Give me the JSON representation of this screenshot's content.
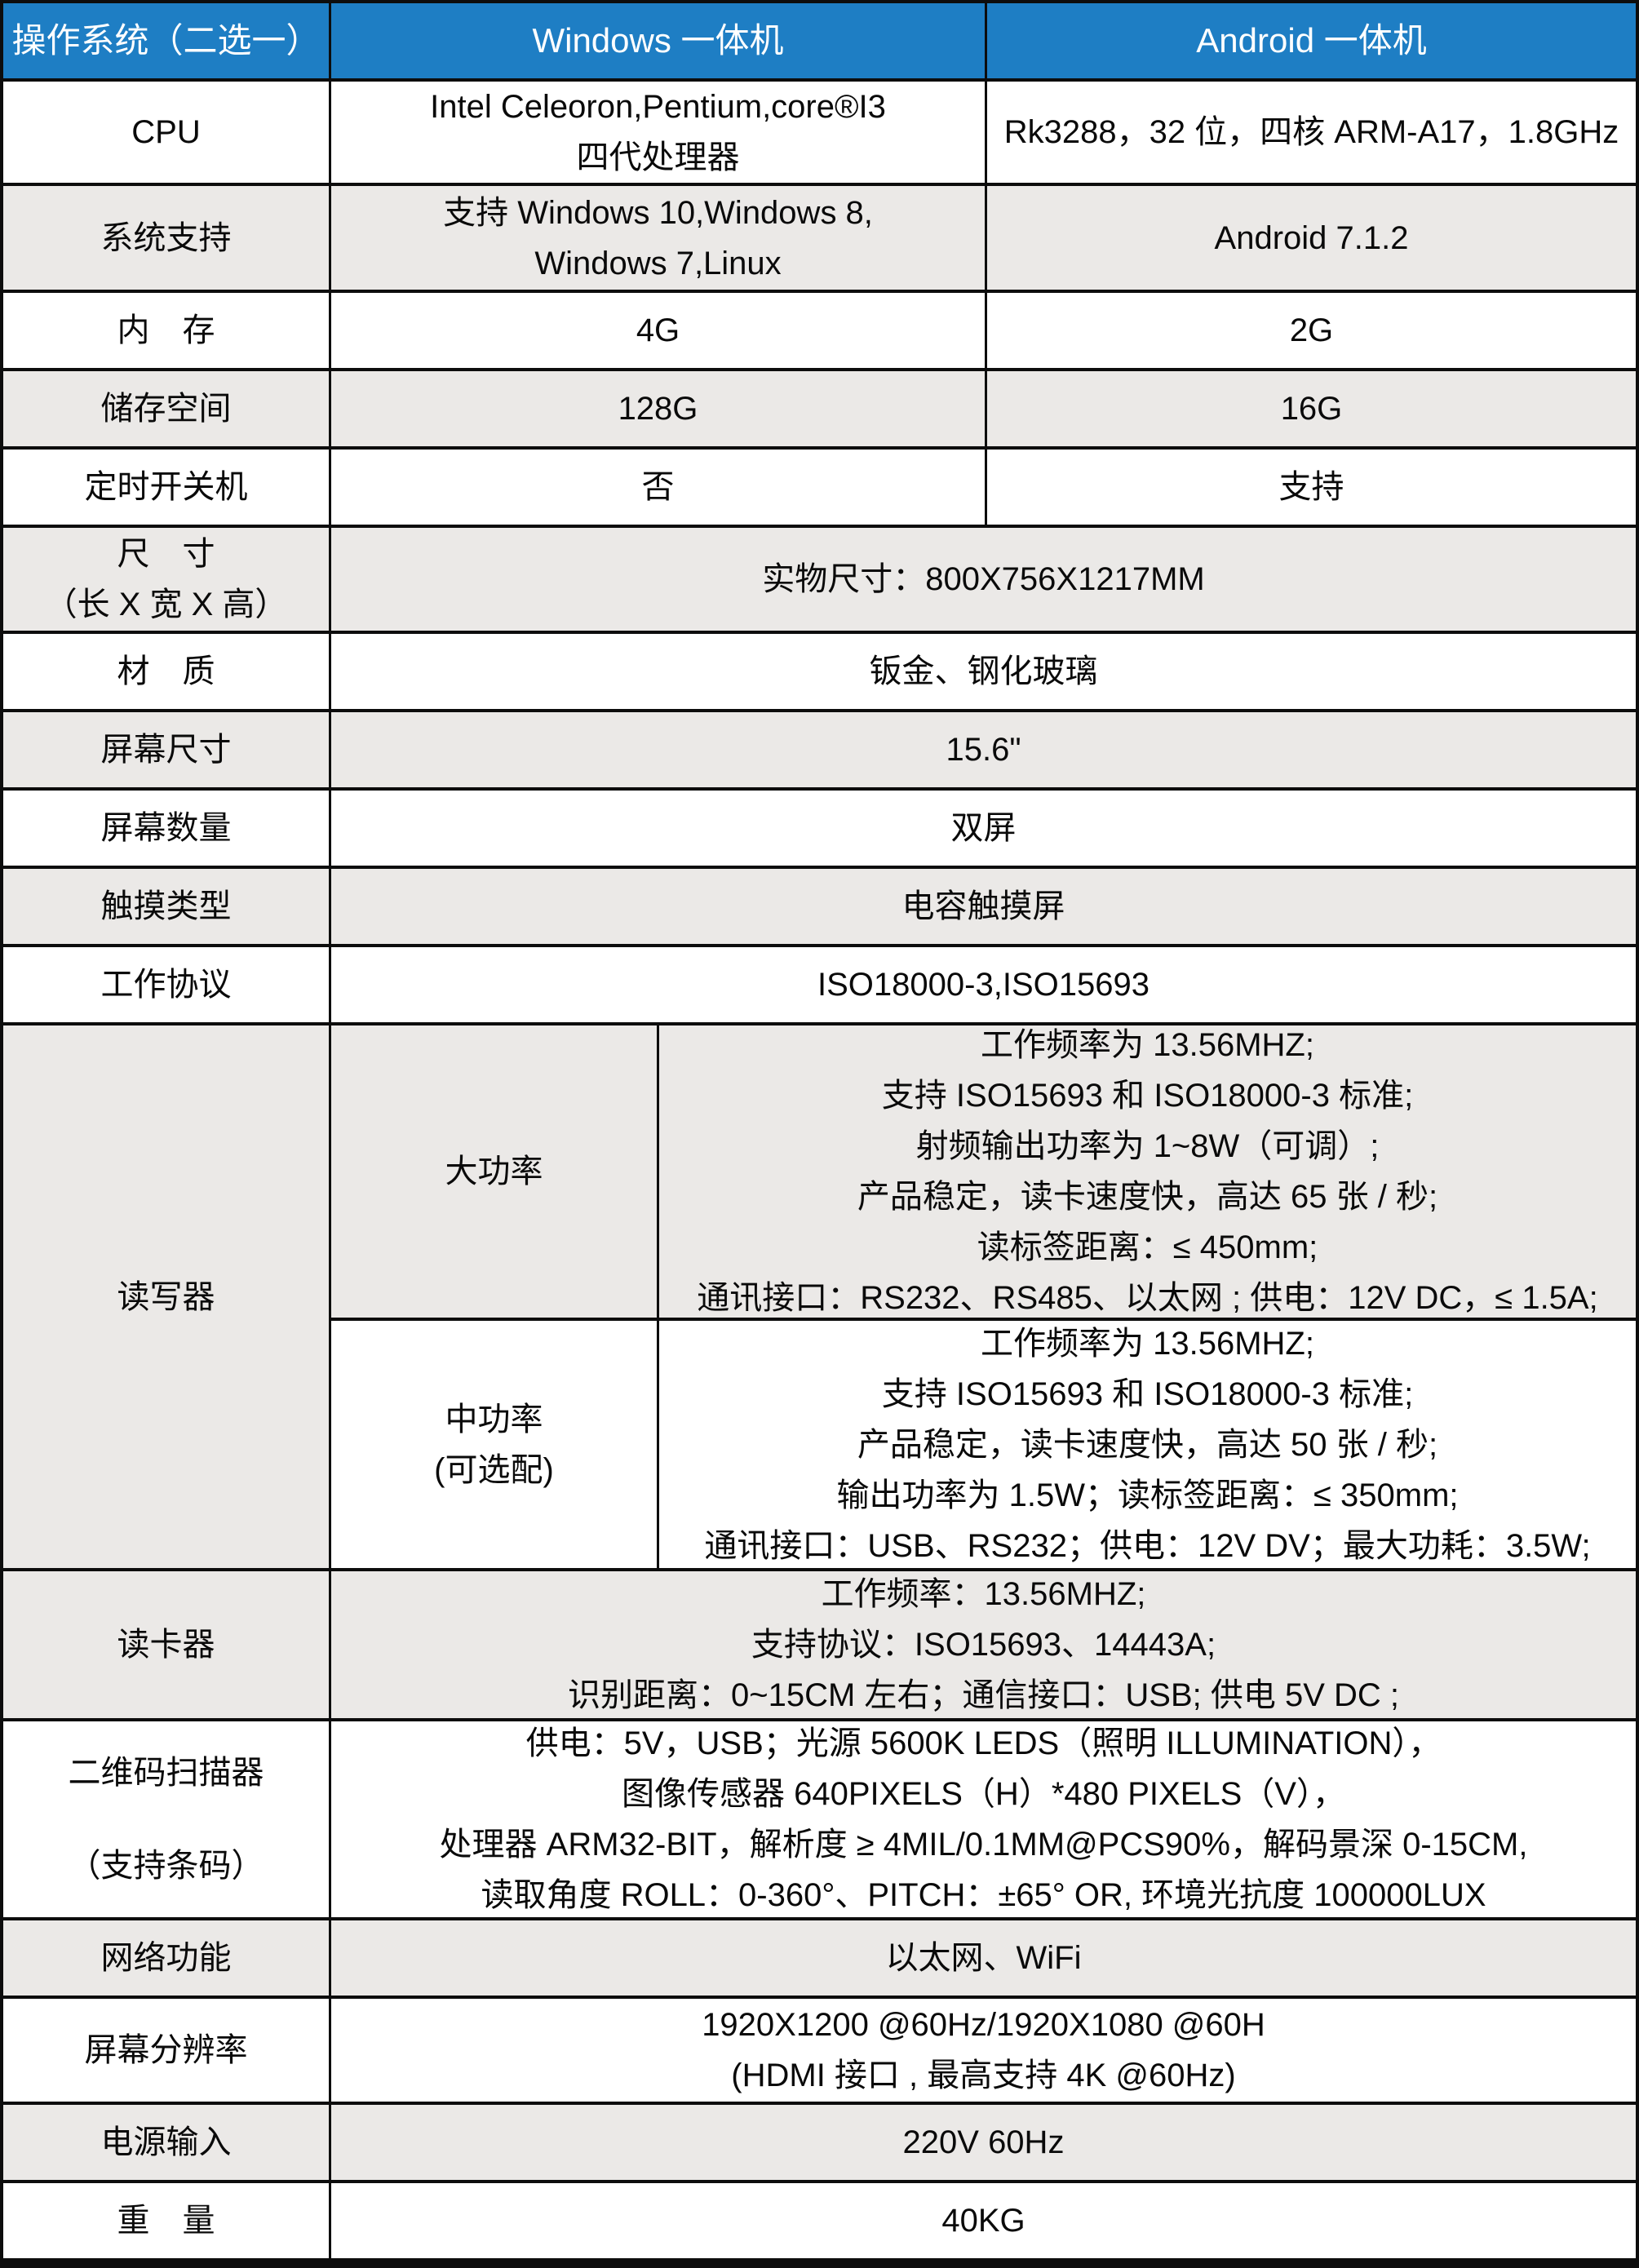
{
  "colors": {
    "header_bg": "#1e7ec4",
    "header_text": "#ffffff",
    "row_white_bg": "#ffffff",
    "row_gray_bg": "#ebe9e7",
    "border": "#0d0d0d",
    "text": "#0a0a0a"
  },
  "header": {
    "col_label": "操作系统（二选一）",
    "col_windows": "Windows 一体机",
    "col_android": "Android 一体机"
  },
  "rows": {
    "cpu": {
      "label": "CPU",
      "windows_line1": "Intel Celeoron,Pentium,core®I3",
      "windows_line2": "四代处理器",
      "android": "Rk3288，32 位，四核 ARM-A17，1.8GHz"
    },
    "os_support": {
      "label": "系统支持",
      "windows_line1": "支持 Windows 10,Windows 8,",
      "windows_line2": "Windows 7,Linux",
      "android": "Android 7.1.2"
    },
    "memory": {
      "label": "内　存",
      "windows": "4G",
      "android": "2G"
    },
    "storage": {
      "label": "储存空间",
      "windows": "128G",
      "android": "16G"
    },
    "scheduled_power": {
      "label": "定时开关机",
      "windows": "否",
      "android": "支持"
    },
    "dimensions": {
      "label_line1": "尺　寸",
      "label_line2": "（长 X 宽 X 高）",
      "value": "实物尺寸：800X756X1217MM"
    },
    "material": {
      "label": "材　质",
      "value": "钣金、钢化玻璃"
    },
    "screen_size": {
      "label": "屏幕尺寸",
      "value": "15.6\""
    },
    "screen_count": {
      "label": "屏幕数量",
      "value": "双屏"
    },
    "touch_type": {
      "label": "触摸类型",
      "value": "电容触摸屏"
    },
    "protocol": {
      "label": "工作协议",
      "value": "ISO18000-3,ISO15693"
    },
    "rfid_reader": {
      "label": "读写器",
      "high_power": {
        "label": "大功率",
        "lines": [
          "工作频率为 13.56MHZ;",
          "支持 ISO15693 和 ISO18000-3 标准;",
          "射频输出功率为 1~8W（可调）;",
          "产品稳定，读卡速度快，高达 65 张 / 秒;",
          "读标签距离：≤ 450mm;",
          "通讯接口：RS232、RS485、以太网 ; 供电：12V DC，≤ 1.5A;"
        ]
      },
      "mid_power": {
        "label_line1": "中功率",
        "label_line2": "(可选配)",
        "lines": [
          "工作频率为 13.56MHZ;",
          "支持 ISO15693 和 ISO18000-3 标准;",
          "产品稳定，读卡速度快，高达 50 张 / 秒;",
          "输出功率为 1.5W；读标签距离：≤ 350mm;",
          "通讯接口：USB、RS232；供电：12V DV；最大功耗：3.5W;"
        ]
      }
    },
    "card_reader": {
      "label": "读卡器",
      "lines": [
        "工作频率：13.56MHZ;",
        "支持协议：ISO15693、14443A;",
        "识别距离：0~15CM 左右；通信接口：USB;  供电 5V DC ;"
      ]
    },
    "qr_scanner": {
      "label_line1": "二维码扫描器",
      "label_line2": "（支持条码）",
      "lines": [
        "供电：5V，USB；光源 5600K LEDS（照明 ILLUMINATION），",
        "图像传感器 640PIXELS（H）*480 PIXELS（V），",
        "处理器 ARM32-BIT，解析度 ≥ 4MIL/0.1MM@PCS90%，解码景深 0-15CM,",
        "读取角度 ROLL：0-360°、PITCH：±65° OR, 环境光抗度 100000LUX"
      ]
    },
    "network": {
      "label": "网络功能",
      "value": "以太网、WiFi"
    },
    "resolution": {
      "label": "屏幕分辨率",
      "line1": "1920X1200 @60Hz/1920X1080 @60H",
      "line2": "(HDMI 接口 , 最高支持 4K @60Hz)"
    },
    "power_input": {
      "label": "电源输入",
      "value": "220V 60Hz"
    },
    "weight": {
      "label": "重　量",
      "value": "40KG"
    }
  }
}
